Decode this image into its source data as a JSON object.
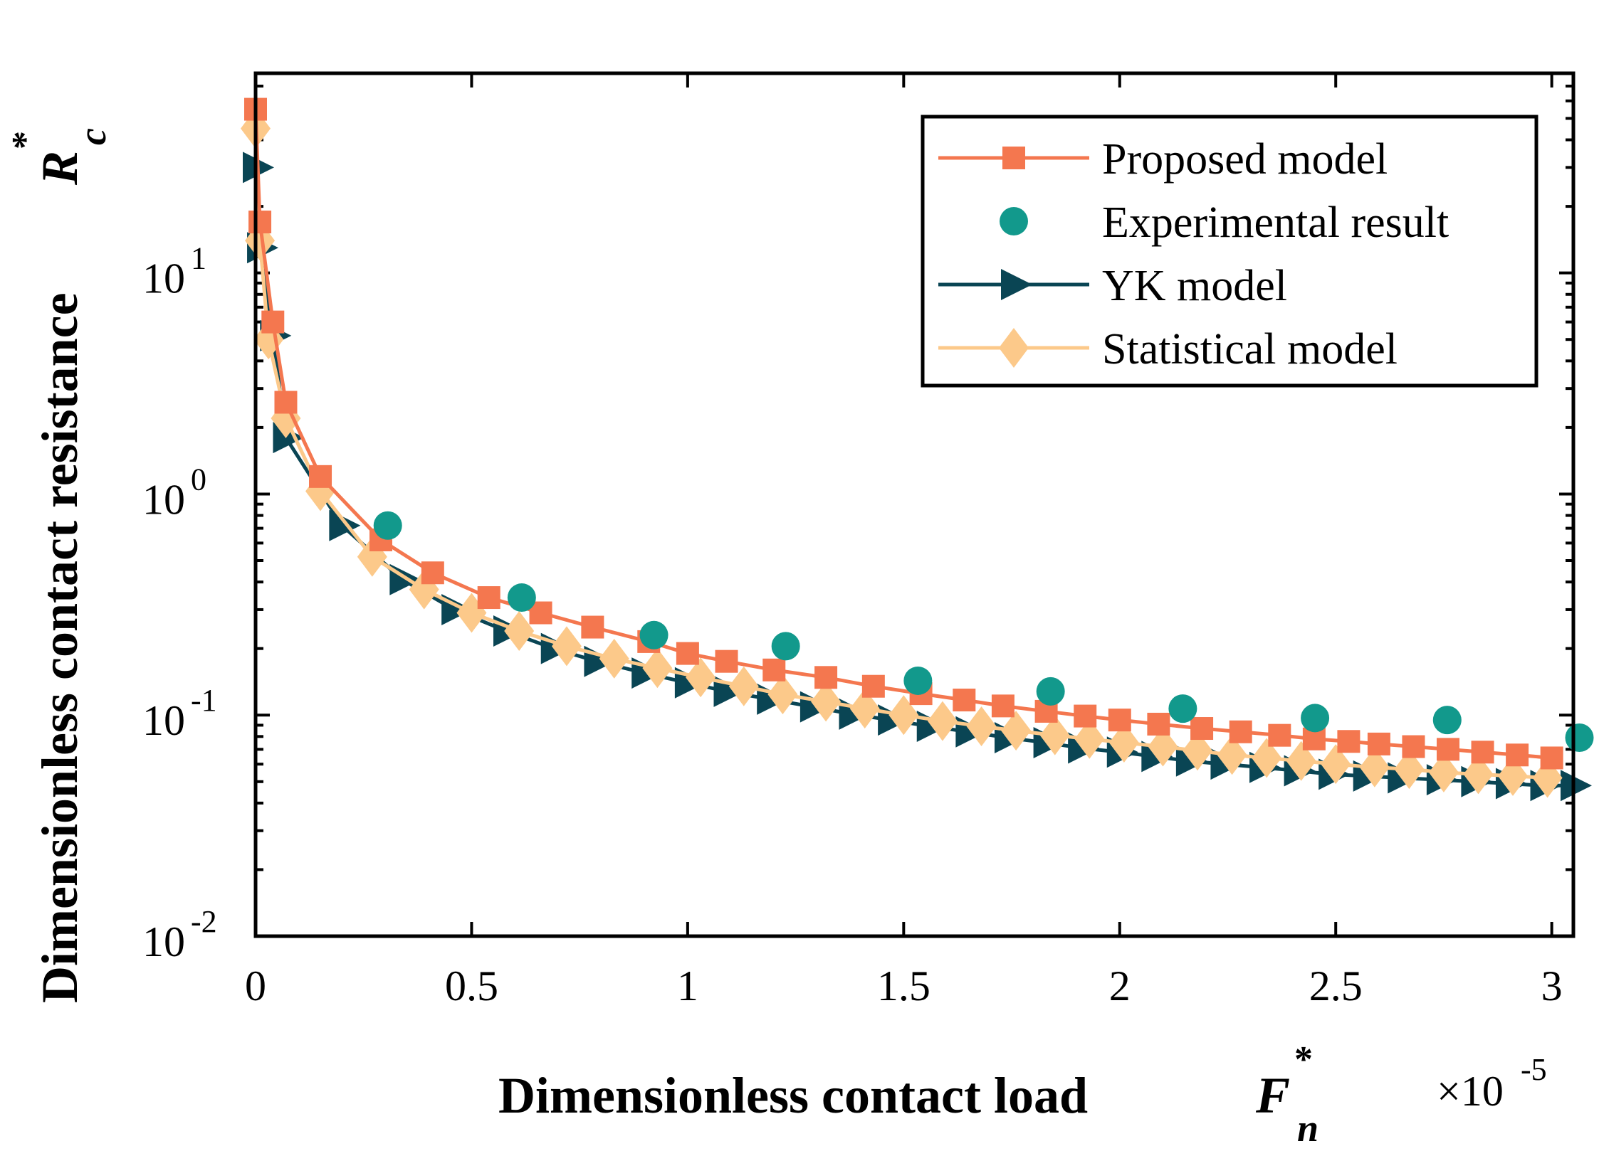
{
  "chart_data": {
    "type": "line",
    "scale_y": "log",
    "xlabel": "Dimensionless contact load",
    "xlabel_symbol": "F",
    "xlabel_sub": "n",
    "xlabel_sup": "*",
    "ylabel": "Dimensionless contact resistance",
    "ylabel_symbol": "R",
    "ylabel_sub": "c",
    "ylabel_sup": "*",
    "x_multiplier_base": "×10",
    "x_multiplier_exp": "-5",
    "xlim": [
      0,
      3.05
    ],
    "ylim": [
      0.01,
      80
    ],
    "x_ticks": [
      0,
      0.5,
      1,
      1.5,
      2,
      2.5,
      3
    ],
    "x_tick_labels": [
      "0",
      "0.5",
      "1",
      "1.5",
      "2",
      "2.5",
      "3"
    ],
    "y_ticks": [
      0.01,
      0.1,
      1,
      10
    ],
    "y_tick_labels": [
      {
        "base": "10",
        "exp": "-2"
      },
      {
        "base": "10",
        "exp": "-1"
      },
      {
        "base": "10",
        "exp": "0"
      },
      {
        "base": "10",
        "exp": "1"
      }
    ],
    "legend_position": "top-right",
    "series": [
      {
        "name": "Proposed model",
        "color": "#F4774F",
        "marker": "square",
        "line": true,
        "x": [
          0.0,
          0.01,
          0.04,
          0.07,
          0.15,
          0.29,
          0.41,
          0.54,
          0.66,
          0.78,
          0.91,
          1.0,
          1.09,
          1.2,
          1.32,
          1.43,
          1.54,
          1.64,
          1.73,
          1.83,
          1.92,
          2.0,
          2.09,
          2.19,
          2.28,
          2.37,
          2.45,
          2.53,
          2.6,
          2.68,
          2.76,
          2.84,
          2.92,
          3.0
        ],
        "y": [
          55,
          17,
          6.0,
          2.6,
          1.2,
          0.62,
          0.44,
          0.34,
          0.29,
          0.25,
          0.215,
          0.19,
          0.175,
          0.16,
          0.148,
          0.135,
          0.125,
          0.117,
          0.11,
          0.104,
          0.099,
          0.095,
          0.091,
          0.087,
          0.084,
          0.081,
          0.078,
          0.076,
          0.074,
          0.072,
          0.07,
          0.068,
          0.066,
          0.064
        ]
      },
      {
        "name": "Experimental result",
        "color": "#12998C",
        "marker": "circle",
        "line": false,
        "x": [
          0.306,
          0.616,
          0.922,
          1.227,
          1.533,
          1.84,
          2.146,
          2.452,
          2.758,
          3.064
        ],
        "y": [
          0.72,
          0.34,
          0.23,
          0.205,
          0.143,
          0.128,
          0.107,
          0.097,
          0.095,
          0.079
        ]
      },
      {
        "name": "YK model",
        "color": "#0A4554",
        "marker": "triangle-right",
        "line": true,
        "x": [
          0.0,
          0.01,
          0.04,
          0.07,
          0.2,
          0.34,
          0.46,
          0.58,
          0.69,
          0.79,
          0.9,
          1.0,
          1.09,
          1.19,
          1.29,
          1.38,
          1.47,
          1.56,
          1.65,
          1.74,
          1.83,
          1.91,
          2.0,
          2.08,
          2.16,
          2.24,
          2.33,
          2.41,
          2.49,
          2.57,
          2.65,
          2.74,
          2.82,
          2.9,
          2.98,
          3.05
        ],
        "y": [
          30,
          13,
          5.2,
          1.8,
          0.72,
          0.41,
          0.3,
          0.24,
          0.2,
          0.175,
          0.155,
          0.14,
          0.128,
          0.118,
          0.109,
          0.101,
          0.095,
          0.089,
          0.084,
          0.079,
          0.075,
          0.071,
          0.068,
          0.065,
          0.062,
          0.06,
          0.058,
          0.056,
          0.054,
          0.053,
          0.052,
          0.051,
          0.05,
          0.049,
          0.048,
          0.048
        ]
      },
      {
        "name": "Statistical model",
        "color": "#FCC98A",
        "marker": "diamond",
        "line": true,
        "x": [
          0.0,
          0.01,
          0.03,
          0.07,
          0.15,
          0.27,
          0.39,
          0.5,
          0.61,
          0.72,
          0.83,
          0.93,
          1.03,
          1.13,
          1.22,
          1.32,
          1.41,
          1.5,
          1.59,
          1.68,
          1.76,
          1.85,
          1.93,
          2.01,
          2.1,
          2.18,
          2.26,
          2.34,
          2.42,
          2.5,
          2.59,
          2.67,
          2.75,
          2.83,
          2.91,
          2.99
        ],
        "y": [
          45,
          14,
          5.0,
          2.2,
          1.03,
          0.52,
          0.37,
          0.29,
          0.24,
          0.205,
          0.18,
          0.163,
          0.148,
          0.135,
          0.124,
          0.115,
          0.107,
          0.1,
          0.094,
          0.089,
          0.085,
          0.081,
          0.078,
          0.075,
          0.072,
          0.069,
          0.066,
          0.064,
          0.062,
          0.06,
          0.058,
          0.057,
          0.055,
          0.054,
          0.053,
          0.052
        ]
      }
    ]
  }
}
